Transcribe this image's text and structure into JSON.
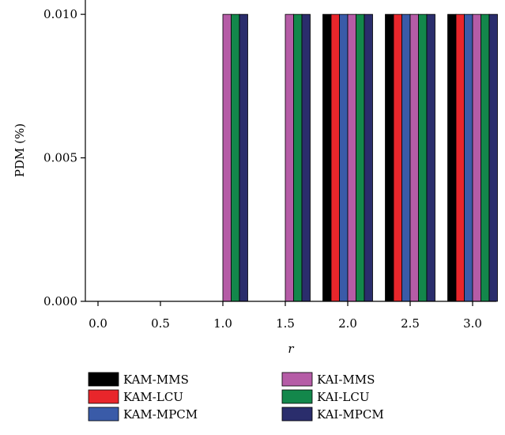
{
  "chart_data": {
    "type": "bar",
    "title": "",
    "xlabel": "r",
    "ylabel": "PDM (%)",
    "ylim": [
      0,
      0.0105
    ],
    "yticks": [
      "0.000",
      "0.005",
      "0.010"
    ],
    "ytick_values": [
      0,
      0.005,
      0.01
    ],
    "categories": [
      "0.0",
      "0.5",
      "1.0",
      "1.5",
      "2.0",
      "2.5",
      "3.0"
    ],
    "grid": false,
    "legend_position": "bottom",
    "series": [
      {
        "name": "KAM-MMS",
        "color": "#000000",
        "values": [
          0,
          0,
          0,
          0,
          0.01,
          0.01,
          0.01
        ]
      },
      {
        "name": "KAM-LCU",
        "color": "#e8262b",
        "values": [
          0,
          0,
          0,
          0,
          0.01,
          0.01,
          0.01
        ]
      },
      {
        "name": "KAM-MPCM",
        "color": "#3a5ba8",
        "values": [
          0,
          0,
          0,
          0,
          0.01,
          0.01,
          0.01
        ]
      },
      {
        "name": "KAI-MMS",
        "color": "#b55ca6",
        "values": [
          0,
          0,
          0.01,
          0.01,
          0.01,
          0.01,
          0.01
        ]
      },
      {
        "name": "KAI-LCU",
        "color": "#13874b",
        "values": [
          0,
          0,
          0.01,
          0.01,
          0.01,
          0.01,
          0.01
        ]
      },
      {
        "name": "KAI-MPCM",
        "color": "#2a2d6c",
        "values": [
          0,
          0,
          0.01,
          0.01,
          0.01,
          0.01,
          0.01
        ]
      }
    ]
  }
}
